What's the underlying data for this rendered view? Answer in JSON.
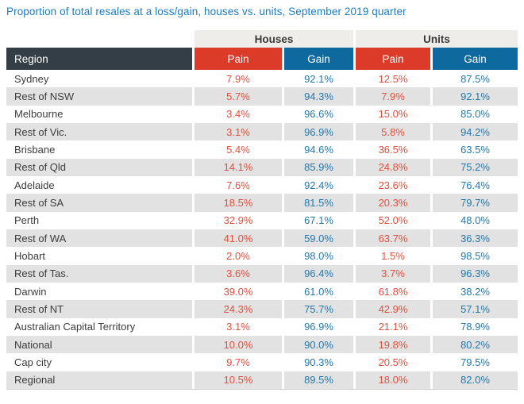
{
  "title": "Proportion of total resales at a loss/gain, houses vs. units, September 2019 quarter",
  "table": {
    "group_headers": {
      "houses": "Houses",
      "units": "Units"
    },
    "column_headers": {
      "region": "Region",
      "pain": "Pain",
      "gain": "Gain"
    }
  },
  "colors": {
    "title_blue": "#1b7dc2",
    "pain_header_red": "#dc3b2a",
    "gain_header_blue": "#0e699e",
    "region_header_dark": "#333e47",
    "group_band_gray": "#efede9",
    "row_stripe_gray": "#e2e2e2",
    "pain_value_red": "#e0513f",
    "gain_value_blue": "#2379ae"
  },
  "chart_data": {
    "type": "table",
    "title": "Proportion of total resales at a loss/gain, houses vs. units, September 2019 quarter",
    "group_columns": [
      "Houses",
      "Units"
    ],
    "columns": [
      "Region",
      "Houses Pain",
      "Houses Gain",
      "Units Pain",
      "Units Gain"
    ],
    "rows": [
      {
        "region": "Sydney",
        "houses_pain": "7.9%",
        "houses_gain": "92.1%",
        "units_pain": "12.5%",
        "units_gain": "87.5%"
      },
      {
        "region": "Rest of NSW",
        "houses_pain": "5.7%",
        "houses_gain": "94.3%",
        "units_pain": "7.9%",
        "units_gain": "92.1%"
      },
      {
        "region": "Melbourne",
        "houses_pain": "3.4%",
        "houses_gain": "96.6%",
        "units_pain": "15.0%",
        "units_gain": "85.0%"
      },
      {
        "region": "Rest of Vic.",
        "houses_pain": "3.1%",
        "houses_gain": "96.9%",
        "units_pain": "5.8%",
        "units_gain": "94.2%"
      },
      {
        "region": "Brisbane",
        "houses_pain": "5.4%",
        "houses_gain": "94.6%",
        "units_pain": "36.5%",
        "units_gain": "63.5%"
      },
      {
        "region": "Rest of Qld",
        "houses_pain": "14.1%",
        "houses_gain": "85.9%",
        "units_pain": "24.8%",
        "units_gain": "75.2%"
      },
      {
        "region": "Adelaide",
        "houses_pain": "7.6%",
        "houses_gain": "92.4%",
        "units_pain": "23.6%",
        "units_gain": "76.4%"
      },
      {
        "region": "Rest of SA",
        "houses_pain": "18.5%",
        "houses_gain": "81.5%",
        "units_pain": "20.3%",
        "units_gain": "79.7%"
      },
      {
        "region": "Perth",
        "houses_pain": "32.9%",
        "houses_gain": "67.1%",
        "units_pain": "52.0%",
        "units_gain": "48.0%"
      },
      {
        "region": "Rest of WA",
        "houses_pain": "41.0%",
        "houses_gain": "59.0%",
        "units_pain": "63.7%",
        "units_gain": "36.3%"
      },
      {
        "region": "Hobart",
        "houses_pain": "2.0%",
        "houses_gain": "98.0%",
        "units_pain": "1.5%",
        "units_gain": "98.5%"
      },
      {
        "region": "Rest of Tas.",
        "houses_pain": "3.6%",
        "houses_gain": "96.4%",
        "units_pain": "3.7%",
        "units_gain": "96.3%"
      },
      {
        "region": "Darwin",
        "houses_pain": "39.0%",
        "houses_gain": "61.0%",
        "units_pain": "61.8%",
        "units_gain": "38.2%"
      },
      {
        "region": "Rest of NT",
        "houses_pain": "24.3%",
        "houses_gain": "75.7%",
        "units_pain": "42.9%",
        "units_gain": "57.1%"
      },
      {
        "region": "Australian Capital Territory",
        "houses_pain": "3.1%",
        "houses_gain": "96.9%",
        "units_pain": "21.1%",
        "units_gain": "78.9%"
      },
      {
        "region": "National",
        "houses_pain": "10.0%",
        "houses_gain": "90.0%",
        "units_pain": "19.8%",
        "units_gain": "80.2%"
      },
      {
        "region": "Cap city",
        "houses_pain": "9.7%",
        "houses_gain": "90.3%",
        "units_pain": "20.5%",
        "units_gain": "79.5%"
      },
      {
        "region": "Regional",
        "houses_pain": "10.5%",
        "houses_gain": "89.5%",
        "units_pain": "18.0%",
        "units_gain": "82.0%"
      }
    ]
  }
}
